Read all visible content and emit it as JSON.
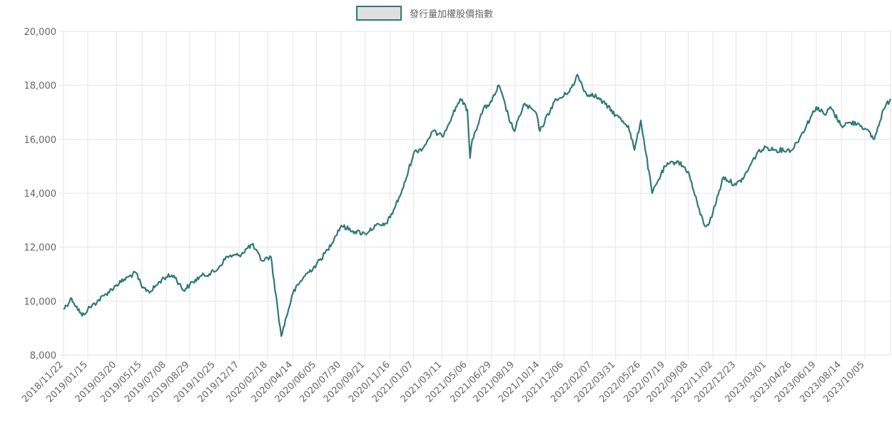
{
  "chart_data": {
    "type": "line",
    "legend": {
      "label": "發行量加權股價指數",
      "position": "top-center"
    },
    "series": [
      {
        "name": "發行量加權股價指數",
        "color": "#2f7a78",
        "fill": "#e0e0e0",
        "x": [
          "2018/11/22",
          "2018/12/10",
          "2019/01/02",
          "2019/01/15",
          "2019/02/20",
          "2019/03/20",
          "2019/04/15",
          "2019/05/02",
          "2019/05/15",
          "2019/06/03",
          "2019/06/28",
          "2019/07/08",
          "2019/07/25",
          "2019/08/15",
          "2019/08/29",
          "2019/09/20",
          "2019/10/25",
          "2019/11/20",
          "2019/12/17",
          "2020/01/14",
          "2020/02/05",
          "2020/02/25",
          "2020/03/19",
          "2020/04/14",
          "2020/05/08",
          "2020/06/05",
          "2020/06/30",
          "2020/07/30",
          "2020/08/25",
          "2020/09/21",
          "2020/10/15",
          "2020/11/02",
          "2020/11/16",
          "2020/12/15",
          "2021/01/07",
          "2021/01/29",
          "2021/02/18",
          "2021/03/11",
          "2021/04/20",
          "2021/05/06",
          "2021/05/12",
          "2021/05/17",
          "2021/06/10",
          "2021/06/29",
          "2021/07/15",
          "2021/08/10",
          "2021/08/19",
          "2021/09/08",
          "2021/10/05",
          "2021/10/14",
          "2021/11/15",
          "2021/12/06",
          "2021/12/28",
          "2022/01/05",
          "2022/01/27",
          "2022/02/07",
          "2022/03/08",
          "2022/03/31",
          "2022/04/28",
          "2022/05/12",
          "2022/05/26",
          "2022/06/20",
          "2022/07/04",
          "2022/07/19",
          "2022/08/15",
          "2022/09/08",
          "2022/09/30",
          "2022/10/14",
          "2022/10/25",
          "2022/11/02",
          "2022/11/25",
          "2022/12/23",
          "2023/01/10",
          "2023/02/08",
          "2023/03/01",
          "2023/03/20",
          "2023/04/26",
          "2023/05/15",
          "2023/06/19",
          "2023/07/10",
          "2023/07/20",
          "2023/08/14",
          "2023/08/28",
          "2023/09/20",
          "2023/10/05",
          "2023/10/26",
          "2023/11/15",
          "2023/12/01"
        ],
        "values": [
          9700,
          10100,
          9450,
          9700,
          10200,
          10600,
          10900,
          11050,
          10500,
          10350,
          10800,
          10900,
          10950,
          10400,
          10600,
          10900,
          11100,
          11650,
          11700,
          12100,
          11500,
          11650,
          8700,
          10300,
          10900,
          11350,
          11900,
          12800,
          12600,
          12500,
          12800,
          12800,
          13100,
          14200,
          15500,
          15700,
          16300,
          16100,
          17500,
          17100,
          15300,
          16000,
          17100,
          17400,
          18000,
          16600,
          16300,
          17300,
          17000,
          16300,
          17400,
          17600,
          18000,
          18400,
          17600,
          17700,
          17300,
          16900,
          16500,
          15600,
          16700,
          14000,
          14500,
          15000,
          15200,
          14800,
          13500,
          12800,
          12900,
          13300,
          14600,
          14300,
          14600,
          15500,
          15700,
          15600,
          15600,
          16100,
          17200,
          16900,
          17200,
          16500,
          16600,
          16600,
          16400,
          16000,
          17100,
          17500
        ]
      }
    ],
    "xlabels": [
      "2018/11/22",
      "2019/01/15",
      "2019/03/20",
      "2019/05/15",
      "2019/07/08",
      "2019/08/29",
      "2019/10/25",
      "2019/12/17",
      "2020/02/18",
      "2020/04/14",
      "2020/06/05",
      "2020/07/30",
      "2020/09/21",
      "2020/11/16",
      "2021/01/07",
      "2021/03/11",
      "2021/05/06",
      "2021/06/29",
      "2021/08/19",
      "2021/10/14",
      "2021/12/06",
      "2022/02/07",
      "2022/03/31",
      "2022/05/26",
      "2022/07/19",
      "2022/09/08",
      "2022/11/02",
      "2022/12/23",
      "2023/03/01",
      "2023/04/26",
      "2023/06/19",
      "2023/08/14",
      "2023/10/05"
    ],
    "yticks": [
      "20,000",
      "18,000",
      "16,000",
      "14,000",
      "12,000",
      "10,000",
      "8,000"
    ],
    "ylim": [
      8000,
      20000
    ],
    "grid": true
  }
}
